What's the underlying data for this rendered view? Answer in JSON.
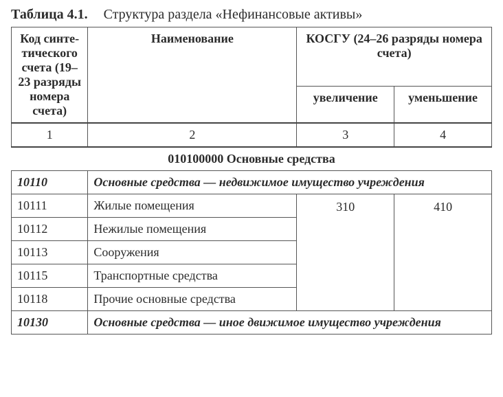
{
  "caption": {
    "number": "Таблица 4.1.",
    "title": "Структура раздела «Нефинансовые активы»"
  },
  "header": {
    "col1": "Код синте­тического счета (19–23 разряды номера счета)",
    "col2": "Наименование",
    "kosgu": "КОСГУ (24–26 разряды номера счета)",
    "col3": "увеличение",
    "col4": "уменьшение"
  },
  "colnums": {
    "c1": "1",
    "c2": "2",
    "c3": "3",
    "c4": "4"
  },
  "section1": "010100000 Основные средства",
  "group1": {
    "code": "10110",
    "title": "Основные средства — недвижимое имущество учреждения"
  },
  "rows1": [
    {
      "code": "10111",
      "name": "Жилые помещения"
    },
    {
      "code": "10112",
      "name": "Нежилые помещения"
    },
    {
      "code": "10113",
      "name": "Сооружения"
    },
    {
      "code": "10115",
      "name": "Транспортные средства"
    },
    {
      "code": "10118",
      "name": "Прочие основные средства"
    }
  ],
  "vals1": {
    "inc": "310",
    "dec": "410"
  },
  "group2": {
    "code": "10130",
    "title": "Основные средства — иное движимое имущество учреж­дения"
  }
}
